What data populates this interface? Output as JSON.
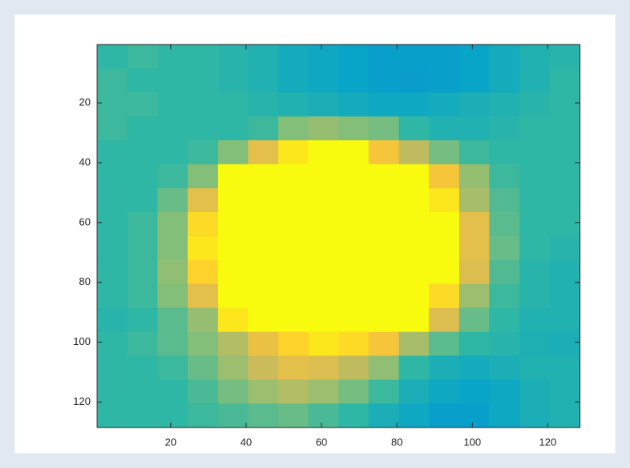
{
  "chart_data": {
    "type": "heatmap",
    "x": [
      4.5,
      12.5,
      20.5,
      28.5,
      36.5,
      44.5,
      52.5,
      60.5,
      68.5,
      76.5,
      84.5,
      92.5,
      100.5,
      108.5,
      116.5,
      124.5
    ],
    "y": [
      4.5,
      12.5,
      20.5,
      28.5,
      36.5,
      44.5,
      52.5,
      60.5,
      68.5,
      76.5,
      84.5,
      92.5,
      100.5,
      108.5,
      116.5,
      124.5
    ],
    "z": [
      [
        0.5,
        0.52,
        0.5,
        0.5,
        0.48,
        0.46,
        0.42,
        0.4,
        0.38,
        0.36,
        0.36,
        0.36,
        0.38,
        0.42,
        0.46,
        0.48
      ],
      [
        0.52,
        0.5,
        0.5,
        0.5,
        0.48,
        0.46,
        0.42,
        0.4,
        0.38,
        0.36,
        0.35,
        0.36,
        0.38,
        0.42,
        0.46,
        0.5
      ],
      [
        0.52,
        0.52,
        0.5,
        0.5,
        0.5,
        0.48,
        0.46,
        0.44,
        0.42,
        0.4,
        0.4,
        0.42,
        0.44,
        0.46,
        0.48,
        0.5
      ],
      [
        0.52,
        0.5,
        0.5,
        0.5,
        0.5,
        0.52,
        0.62,
        0.65,
        0.62,
        0.6,
        0.5,
        0.46,
        0.46,
        0.48,
        0.5,
        0.5
      ],
      [
        0.5,
        0.5,
        0.5,
        0.52,
        0.62,
        0.8,
        0.95,
        1,
        1,
        0.85,
        0.72,
        0.6,
        0.52,
        0.5,
        0.5,
        0.5
      ],
      [
        0.5,
        0.5,
        0.52,
        0.62,
        1,
        1,
        1,
        1,
        1,
        1,
        1,
        0.85,
        0.65,
        0.52,
        0.5,
        0.5
      ],
      [
        0.5,
        0.5,
        0.58,
        0.8,
        1,
        1,
        1,
        1,
        1,
        1,
        1,
        0.95,
        0.68,
        0.55,
        0.5,
        0.5
      ],
      [
        0.5,
        0.52,
        0.62,
        0.92,
        1,
        1,
        1,
        1,
        1,
        1,
        1,
        1,
        0.8,
        0.56,
        0.5,
        0.5
      ],
      [
        0.5,
        0.52,
        0.62,
        0.95,
        1,
        1,
        1,
        1,
        1,
        1,
        1,
        1,
        0.8,
        0.58,
        0.5,
        0.48
      ],
      [
        0.5,
        0.52,
        0.64,
        0.9,
        1,
        1,
        1,
        1,
        1,
        1,
        1,
        1,
        0.78,
        0.55,
        0.48,
        0.46
      ],
      [
        0.5,
        0.52,
        0.62,
        0.8,
        1,
        1,
        1,
        1,
        1,
        1,
        1,
        0.92,
        0.66,
        0.52,
        0.48,
        0.46
      ],
      [
        0.48,
        0.5,
        0.56,
        0.65,
        0.95,
        1,
        1,
        1,
        1,
        1,
        1,
        0.78,
        0.58,
        0.5,
        0.46,
        0.46
      ],
      [
        0.5,
        0.52,
        0.56,
        0.62,
        0.7,
        0.82,
        0.9,
        0.95,
        0.92,
        0.85,
        0.68,
        0.56,
        0.5,
        0.48,
        0.45,
        0.44
      ],
      [
        0.5,
        0.5,
        0.52,
        0.58,
        0.66,
        0.74,
        0.8,
        0.78,
        0.72,
        0.64,
        0.5,
        0.44,
        0.42,
        0.44,
        0.46,
        0.46
      ],
      [
        0.5,
        0.5,
        0.5,
        0.54,
        0.6,
        0.66,
        0.7,
        0.66,
        0.6,
        0.52,
        0.44,
        0.4,
        0.38,
        0.4,
        0.44,
        0.46
      ],
      [
        0.5,
        0.5,
        0.5,
        0.52,
        0.54,
        0.56,
        0.58,
        0.54,
        0.5,
        0.44,
        0.4,
        0.36,
        0.36,
        0.4,
        0.44,
        0.46
      ]
    ],
    "clim": [
      0,
      1
    ],
    "colormap": [
      "#352a87",
      "#0f5cdd",
      "#1481d6",
      "#06a4ca",
      "#2eb7a4",
      "#87bf77",
      "#d1bb59",
      "#fec832",
      "#f9fb0e"
    ],
    "xlim": [
      0.5,
      128.5
    ],
    "ylim": [
      0.5,
      128.5
    ],
    "y_reversed": true,
    "xticks": [
      20,
      40,
      60,
      80,
      100,
      120
    ],
    "yticks": [
      20,
      40,
      60,
      80,
      100,
      120
    ]
  }
}
